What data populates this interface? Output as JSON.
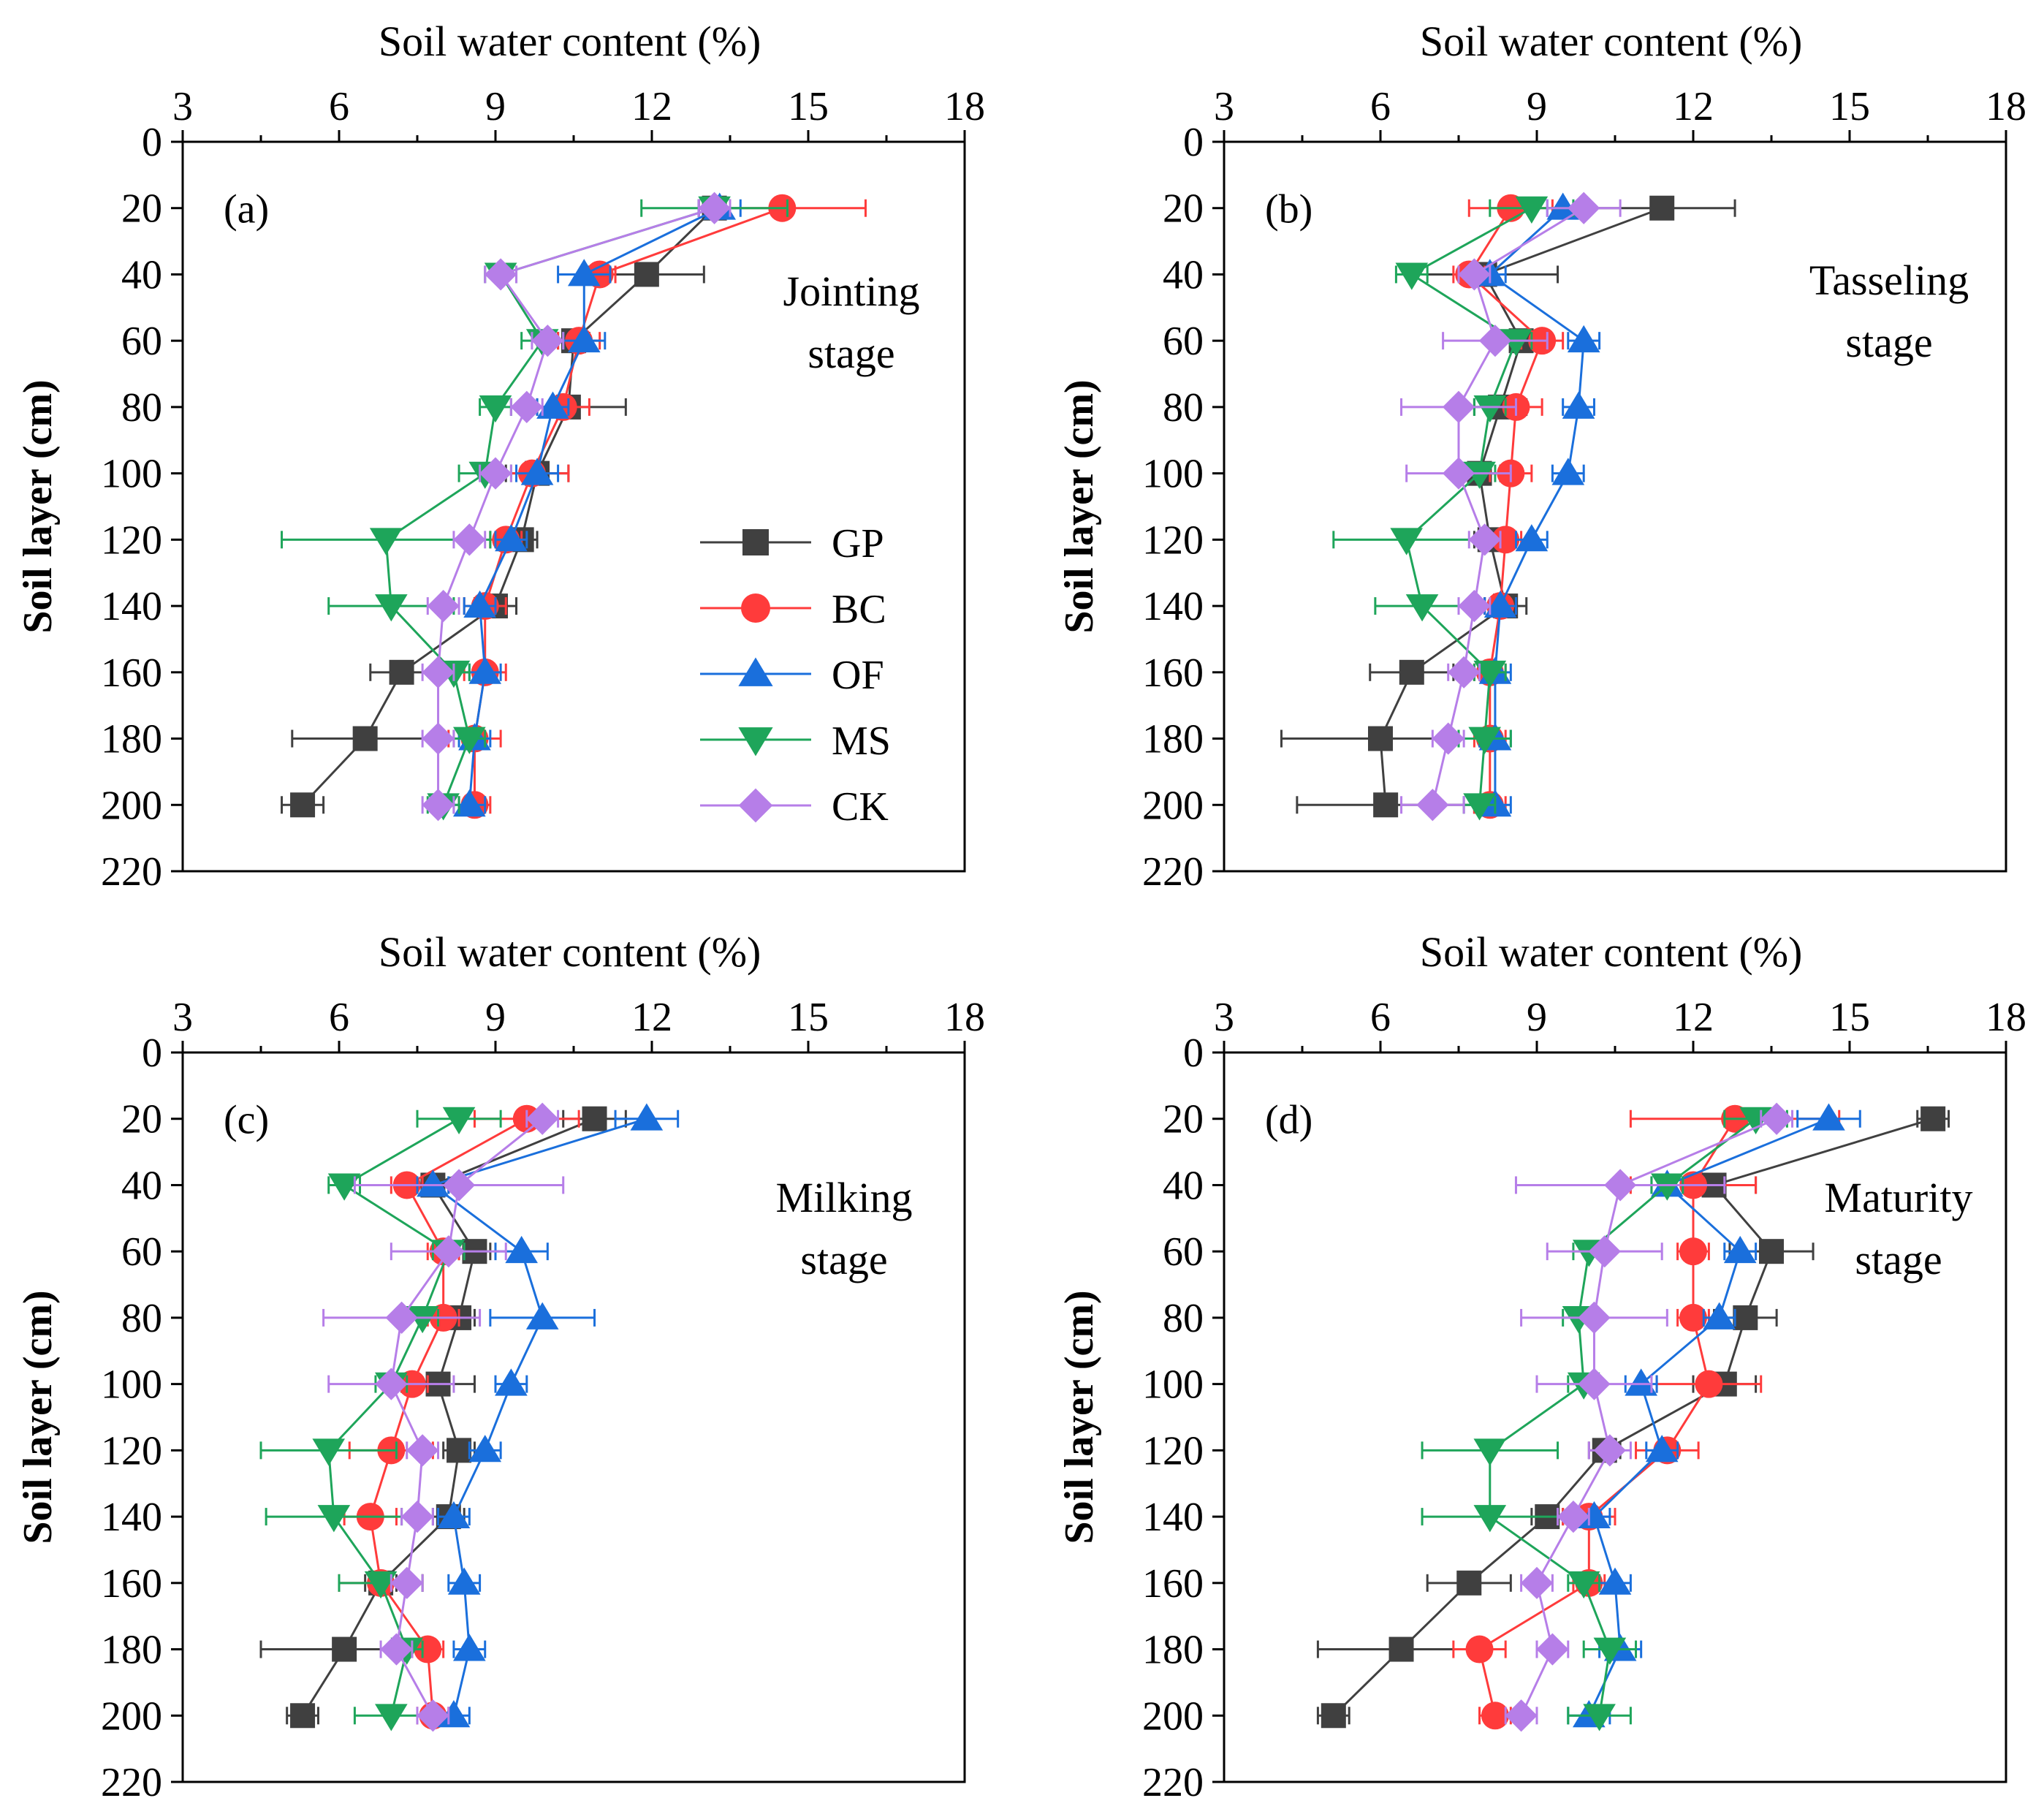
{
  "chart_data": [
    {
      "type": "line",
      "panel_label": "(a)",
      "stage_lines": [
        "Jointing",
        "stage"
      ],
      "xlabel": "Soil water content (%)",
      "ylabel": "Soil layer (cm)",
      "xlim": [
        3,
        18
      ],
      "ylim": [
        0,
        220
      ],
      "x_ticks": [
        "3",
        "6",
        "9",
        "12",
        "15",
        "18"
      ],
      "y_ticks": [
        "0",
        "20",
        "40",
        "60",
        "80",
        "100",
        "120",
        "140",
        "160",
        "180",
        "200",
        "220"
      ],
      "depths": [
        20,
        40,
        60,
        80,
        100,
        120,
        140,
        160,
        180,
        200
      ],
      "series": [
        {
          "name": "GP",
          "color": "#404040",
          "marker": "square",
          "values": [
            13.2,
            11.9,
            10.5,
            10.4,
            9.8,
            9.5,
            9.0,
            7.2,
            6.5,
            5.3
          ],
          "errors": [
            0.3,
            1.1,
            0.3,
            1.1,
            0.6,
            0.3,
            0.4,
            0.6,
            1.4,
            0.4
          ]
        },
        {
          "name": "BC",
          "color": "#ff3b3b",
          "marker": "circle",
          "values": [
            14.5,
            11.0,
            10.6,
            10.3,
            9.7,
            9.2,
            8.8,
            8.8,
            8.6,
            8.6
          ],
          "errors": [
            1.6,
            0.3,
            0.4,
            0.5,
            0.7,
            0.3,
            0.4,
            0.4,
            0.5,
            0.3
          ]
        },
        {
          "name": "OF",
          "color": "#1a6fdc",
          "marker": "triangle-up",
          "values": [
            13.3,
            10.7,
            10.7,
            10.1,
            9.8,
            9.3,
            8.7,
            8.8,
            8.6,
            8.5
          ],
          "errors": [
            0.4,
            0.5,
            0.4,
            0.3,
            0.4,
            0.3,
            0.3,
            0.3,
            0.3,
            0.3
          ]
        },
        {
          "name": "MS",
          "color": "#1ea55a",
          "marker": "triangle-down",
          "values": [
            13.2,
            9.1,
            9.9,
            9.0,
            8.8,
            6.9,
            7.0,
            8.2,
            8.5,
            8.0
          ],
          "errors": [
            1.4,
            0.3,
            0.4,
            0.3,
            0.5,
            2.0,
            1.2,
            0.3,
            0.3,
            0.3
          ]
        },
        {
          "name": "CK",
          "color": "#b67ee8",
          "marker": "diamond",
          "values": [
            13.2,
            9.1,
            10.0,
            9.6,
            9.0,
            8.5,
            8.0,
            7.9,
            7.9,
            7.9
          ],
          "errors": [
            0.3,
            0.3,
            0.3,
            0.3,
            0.3,
            0.3,
            0.3,
            0.3,
            0.3,
            0.3
          ]
        }
      ]
    },
    {
      "type": "line",
      "panel_label": "(b)",
      "stage_lines": [
        "Tasseling",
        "stage"
      ],
      "xlabel": "Soil water content (%)",
      "ylabel": "Soil layer (cm)",
      "xlim": [
        3,
        18
      ],
      "ylim": [
        0,
        220
      ],
      "x_ticks": [
        "3",
        "6",
        "9",
        "12",
        "15",
        "18"
      ],
      "y_ticks": [
        "0",
        "20",
        "40",
        "60",
        "80",
        "100",
        "120",
        "140",
        "160",
        "180",
        "200",
        "220"
      ],
      "depths": [
        20,
        40,
        60,
        80,
        100,
        120,
        140,
        160,
        180,
        200
      ],
      "series": [
        {
          "name": "GP",
          "color": "#404040",
          "marker": "square",
          "values": [
            11.4,
            8.0,
            8.7,
            8.3,
            7.9,
            8.1,
            8.4,
            6.6,
            6.0,
            6.1
          ],
          "errors": [
            1.4,
            1.4,
            0.5,
            0.5,
            0.4,
            0.3,
            0.4,
            0.8,
            1.9,
            1.7
          ]
        },
        {
          "name": "BC",
          "color": "#ff3b3b",
          "marker": "circle",
          "values": [
            8.5,
            7.7,
            9.1,
            8.6,
            8.5,
            8.4,
            8.3,
            8.1,
            8.1,
            8.1
          ],
          "errors": [
            0.8,
            0.3,
            0.4,
            0.5,
            0.4,
            0.3,
            0.3,
            0.3,
            0.3,
            0.3
          ]
        },
        {
          "name": "OF",
          "color": "#1a6fdc",
          "marker": "triangle-up",
          "values": [
            9.5,
            8.1,
            9.9,
            9.8,
            9.6,
            8.9,
            8.3,
            8.2,
            8.2,
            8.2
          ],
          "errors": [
            0.3,
            0.3,
            0.3,
            0.3,
            0.3,
            0.3,
            0.3,
            0.3,
            0.3,
            0.3
          ]
        },
        {
          "name": "MS",
          "color": "#1ea55a",
          "marker": "triangle-down",
          "values": [
            8.9,
            6.6,
            8.6,
            8.1,
            7.9,
            6.5,
            6.8,
            8.1,
            8.0,
            7.9
          ],
          "errors": [
            0.8,
            0.3,
            0.3,
            0.3,
            0.3,
            1.4,
            0.9,
            0.3,
            0.5,
            0.3
          ]
        },
        {
          "name": "CK",
          "color": "#b67ee8",
          "marker": "diamond",
          "values": [
            9.9,
            7.8,
            8.2,
            7.5,
            7.5,
            8.0,
            7.8,
            7.6,
            7.3,
            7.0
          ],
          "errors": [
            0.7,
            0.3,
            1.0,
            1.1,
            1.0,
            0.3,
            0.3,
            0.3,
            0.3,
            0.6
          ]
        }
      ]
    },
    {
      "type": "line",
      "panel_label": "(c)",
      "stage_lines": [
        "Milking",
        "stage"
      ],
      "xlabel": "Soil water content (%)",
      "ylabel": "Soil layer (cm)",
      "xlim": [
        3,
        18
      ],
      "ylim": [
        0,
        220
      ],
      "x_ticks": [
        "3",
        "6",
        "9",
        "12",
        "15",
        "18"
      ],
      "y_ticks": [
        "0",
        "20",
        "40",
        "60",
        "80",
        "100",
        "120",
        "140",
        "160",
        "180",
        "200",
        "220"
      ],
      "depths": [
        20,
        40,
        60,
        80,
        100,
        120,
        140,
        160,
        180,
        200
      ],
      "series": [
        {
          "name": "GP",
          "color": "#404040",
          "marker": "square",
          "values": [
            10.9,
            7.8,
            8.6,
            8.3,
            7.9,
            8.3,
            8.1,
            6.8,
            6.1,
            5.3
          ],
          "errors": [
            0.6,
            0.3,
            0.3,
            0.3,
            0.7,
            0.3,
            0.3,
            0.3,
            1.6,
            0.3
          ]
        },
        {
          "name": "BC",
          "color": "#ff3b3b",
          "marker": "circle",
          "values": [
            9.6,
            7.3,
            8.0,
            8.0,
            7.4,
            7.0,
            6.6,
            6.8,
            7.7,
            7.8
          ],
          "errors": [
            1.0,
            0.3,
            0.3,
            0.3,
            0.3,
            0.8,
            0.5,
            0.8,
            0.3,
            0.3
          ]
        },
        {
          "name": "OF",
          "color": "#1a6fdc",
          "marker": "triangle-up",
          "values": [
            11.9,
            7.8,
            9.5,
            9.9,
            9.3,
            8.8,
            8.2,
            8.4,
            8.5,
            8.2
          ],
          "errors": [
            0.6,
            0.3,
            0.5,
            1.0,
            0.3,
            0.3,
            0.3,
            0.3,
            0.3,
            0.3
          ]
        },
        {
          "name": "MS",
          "color": "#1ea55a",
          "marker": "triangle-down",
          "values": [
            8.3,
            6.1,
            8.1,
            7.6,
            7.0,
            5.8,
            5.9,
            6.8,
            7.3,
            7.0
          ],
          "errors": [
            0.8,
            0.3,
            0.3,
            0.3,
            0.3,
            1.3,
            1.3,
            0.8,
            0.3,
            0.7
          ]
        },
        {
          "name": "CK",
          "color": "#b67ee8",
          "marker": "diamond",
          "values": [
            9.9,
            8.3,
            8.1,
            7.2,
            7.0,
            7.6,
            7.5,
            7.3,
            7.1,
            7.8
          ],
          "errors": [
            0.3,
            2.0,
            1.1,
            1.5,
            1.2,
            0.3,
            0.3,
            0.3,
            0.3,
            0.3
          ]
        }
      ]
    },
    {
      "type": "line",
      "panel_label": "(d)",
      "stage_lines": [
        "Maturity",
        "stage"
      ],
      "xlabel": "Soil water content (%)",
      "ylabel": "Soil layer (cm)",
      "xlim": [
        3,
        18
      ],
      "ylim": [
        0,
        220
      ],
      "x_ticks": [
        "3",
        "6",
        "9",
        "12",
        "15",
        "18"
      ],
      "y_ticks": [
        "0",
        "20",
        "40",
        "60",
        "80",
        "100",
        "120",
        "140",
        "160",
        "180",
        "200",
        "220"
      ],
      "depths": [
        20,
        40,
        60,
        80,
        100,
        120,
        140,
        160,
        180,
        200
      ],
      "series": [
        {
          "name": "GP",
          "color": "#404040",
          "marker": "square",
          "values": [
            16.6,
            12.4,
            13.5,
            13.0,
            12.6,
            10.3,
            9.2,
            7.7,
            6.4,
            5.1
          ],
          "errors": [
            0.3,
            0.8,
            0.8,
            0.6,
            0.6,
            0.3,
            0.3,
            0.8,
            1.6,
            0.3
          ]
        },
        {
          "name": "BC",
          "color": "#ff3b3b",
          "marker": "circle",
          "values": [
            12.8,
            12.0,
            12.0,
            12.0,
            12.3,
            11.5,
            10.0,
            10.0,
            7.9,
            8.2
          ],
          "errors": [
            2.0,
            1.2,
            0.3,
            0.3,
            1.0,
            0.6,
            0.5,
            0.3,
            0.5,
            0.3
          ]
        },
        {
          "name": "OF",
          "color": "#1a6fdc",
          "marker": "triangle-up",
          "values": [
            14.6,
            11.5,
            12.9,
            12.5,
            11.0,
            11.4,
            10.1,
            10.5,
            10.6,
            10.0
          ],
          "errors": [
            0.6,
            0.3,
            0.3,
            0.3,
            0.3,
            0.3,
            0.3,
            0.3,
            0.4,
            0.4
          ]
        },
        {
          "name": "MS",
          "color": "#1ea55a",
          "marker": "triangle-down",
          "values": [
            13.2,
            11.5,
            10.0,
            9.8,
            9.9,
            8.1,
            8.1,
            9.9,
            10.4,
            10.2
          ],
          "errors": [
            0.6,
            0.3,
            0.3,
            0.3,
            0.3,
            1.3,
            1.3,
            0.3,
            0.5,
            0.6
          ]
        },
        {
          "name": "CK",
          "color": "#b67ee8",
          "marker": "diamond",
          "values": [
            13.6,
            10.6,
            10.3,
            10.1,
            10.1,
            10.4,
            9.7,
            9.0,
            9.3,
            8.7
          ],
          "errors": [
            0.3,
            2.0,
            1.1,
            1.4,
            1.1,
            0.4,
            0.3,
            0.3,
            0.3,
            0.3
          ]
        }
      ]
    }
  ]
}
